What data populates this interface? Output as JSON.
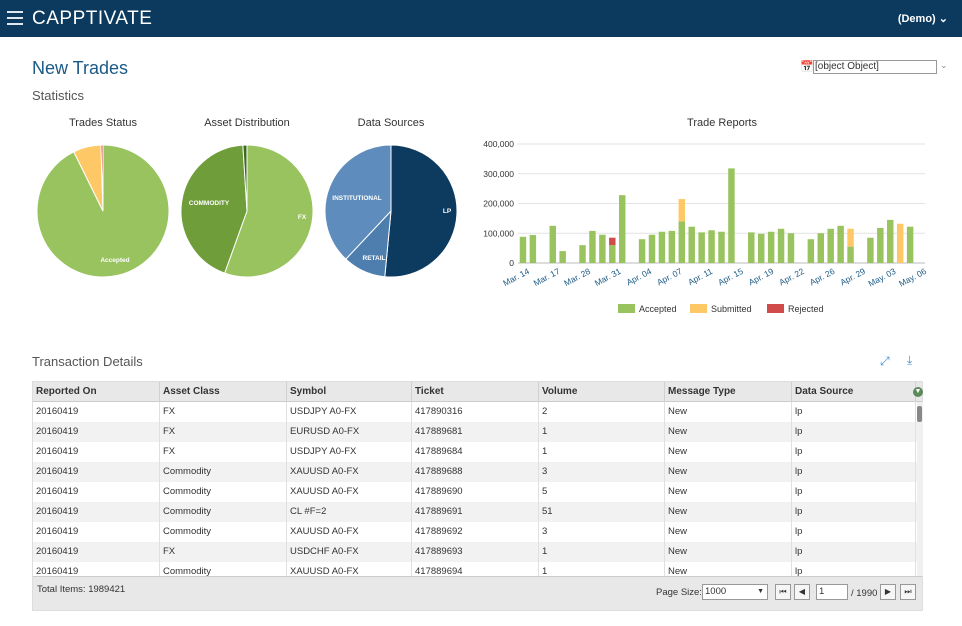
{
  "app": {
    "logo": "CAPPTIVATE",
    "user_menu": "(Demo)"
  },
  "header": {
    "page_title": "New Trades",
    "section_title": "Statistics"
  },
  "date_picker": {
    "value": "[object Object]"
  },
  "pies": [
    {
      "title": "Trades Status",
      "slices": [
        {
          "label": "Accepted",
          "value": 92.7,
          "color": "#99c35f"
        },
        {
          "label": "Submitted",
          "value": 6.8,
          "color": "#ffc866"
        },
        {
          "label": "Rejected",
          "value": 0.5,
          "color": "#d24b4b"
        }
      ]
    },
    {
      "title": "Asset Distribution",
      "slices": [
        {
          "label": "FX",
          "value": 55.5,
          "color": "#99c35f"
        },
        {
          "label": "COMMODITY",
          "value": 43.5,
          "color": "#6f9d3a"
        },
        {
          "label": "",
          "value": 1.0,
          "color": "#3e6a1f"
        }
      ]
    },
    {
      "title": "Data Sources",
      "slices": [
        {
          "label": "LP",
          "value": 51.5,
          "color": "#0d3b60"
        },
        {
          "label": "RETAIL",
          "value": 10.5,
          "color": "#4d7eae"
        },
        {
          "label": "INSTITUTIONAL",
          "value": 38.0,
          "color": "#5e8dbd"
        }
      ]
    }
  ],
  "chart_data": {
    "type": "bar",
    "title": "Trade Reports",
    "ylim": [
      0,
      400000
    ],
    "yticks": [
      "0",
      "100,000",
      "200,000",
      "300,000",
      "400,000"
    ],
    "xticks": [
      "Mar. 14",
      "Mar. 17",
      "Mar. 28",
      "Mar. 31",
      "Apr. 04",
      "Apr. 07",
      "Apr. 11",
      "Apr. 15",
      "Apr. 19",
      "Apr. 22",
      "Apr. 26",
      "Apr. 29",
      "May. 03",
      "May. 06"
    ],
    "legend_position": "bottom",
    "series": [
      {
        "name": "Accepted",
        "color": "#99c35f",
        "values": [
          88000,
          94000,
          0,
          125000,
          40000,
          0,
          60000,
          108000,
          95000,
          60000,
          228000,
          0,
          80000,
          95000,
          105000,
          108000,
          140000,
          122000,
          103000,
          110000,
          105000,
          318000,
          0,
          103000,
          98000,
          105000,
          115000,
          100000,
          0,
          80000,
          100000,
          115000,
          125000,
          55000,
          0,
          85000,
          118000,
          145000,
          0,
          122000,
          0
        ]
      },
      {
        "name": "Submitted",
        "color": "#ffc866",
        "values": [
          0,
          0,
          0,
          0,
          0,
          0,
          0,
          0,
          0,
          0,
          0,
          0,
          0,
          0,
          0,
          0,
          75000,
          0,
          0,
          0,
          0,
          0,
          0,
          0,
          0,
          0,
          0,
          0,
          0,
          0,
          0,
          0,
          0,
          60000,
          0,
          0,
          0,
          0,
          132000,
          0,
          0
        ]
      },
      {
        "name": "Rejected",
        "color": "#d24b4b",
        "values": [
          0,
          0,
          0,
          0,
          0,
          0,
          0,
          0,
          0,
          25000,
          0,
          0,
          0,
          0,
          0,
          0,
          0,
          0,
          0,
          0,
          0,
          0,
          0,
          0,
          0,
          0,
          0,
          0,
          0,
          0,
          0,
          0,
          0,
          0,
          0,
          0,
          0,
          0,
          0,
          0,
          0
        ]
      }
    ]
  },
  "transactions": {
    "title": "Transaction Details",
    "icons": {
      "expand": "expand-icon",
      "download": "download-icon",
      "menu": "column-menu-icon"
    },
    "columns": [
      "Reported On",
      "Asset Class",
      "Symbol",
      "Ticket",
      "Volume",
      "Message Type",
      "Data Source"
    ],
    "rows": [
      [
        "20160419",
        "FX",
        "USDJPY A0-FX",
        "417890316",
        "2",
        "New",
        "lp"
      ],
      [
        "20160419",
        "FX",
        "EURUSD A0-FX",
        "417889681",
        "1",
        "New",
        "lp"
      ],
      [
        "20160419",
        "FX",
        "USDJPY A0-FX",
        "417889684",
        "1",
        "New",
        "lp"
      ],
      [
        "20160419",
        "Commodity",
        "XAUUSD A0-FX",
        "417889688",
        "3",
        "New",
        "lp"
      ],
      [
        "20160419",
        "Commodity",
        "XAUUSD A0-FX",
        "417889690",
        "5",
        "New",
        "lp"
      ],
      [
        "20160419",
        "Commodity",
        "CL #F=2",
        "417889691",
        "51",
        "New",
        "lp"
      ],
      [
        "20160419",
        "Commodity",
        "XAUUSD A0-FX",
        "417889692",
        "3",
        "New",
        "lp"
      ],
      [
        "20160419",
        "FX",
        "USDCHF A0-FX",
        "417889693",
        "1",
        "New",
        "lp"
      ],
      [
        "20160419",
        "Commodity",
        "XAUUSD A0-FX",
        "417889694",
        "1",
        "New",
        "lp"
      ]
    ],
    "footer": {
      "total_items": "Total Items: 1989421",
      "page_size_label": "Page Size:",
      "page_size": "1000",
      "page": "1",
      "page_of": "/ 1990"
    }
  }
}
